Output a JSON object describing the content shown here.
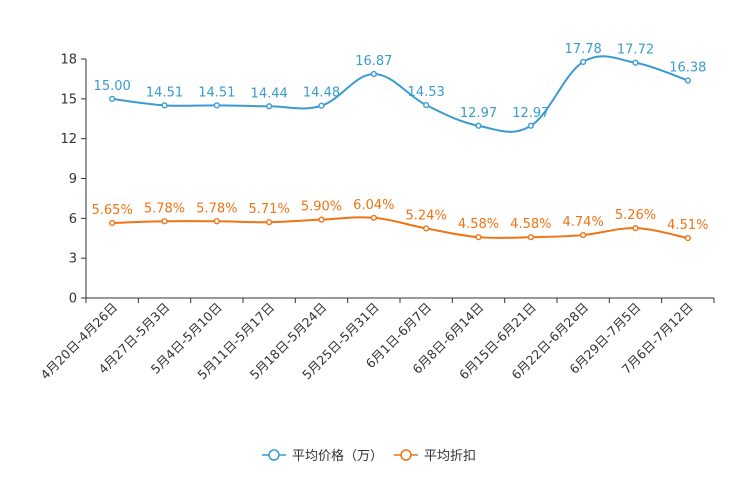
{
  "chart_data": {
    "type": "line",
    "title": "",
    "xlabel": "",
    "ylabel": "",
    "ylim": [
      0,
      18
    ],
    "yticks": [
      "0",
      "3",
      "6",
      "9",
      "12",
      "15",
      "18"
    ],
    "grid": false,
    "legend_position": "bottom-center",
    "categories": [
      "4月20日-4月26日",
      "4月27日-5月3日",
      "5月4日-5月10日",
      "5月11日-5月17日",
      "5月18日-5月24日",
      "5月25日-5月31日",
      "6月1日-6月7日",
      "6月8日-6月14日",
      "6月15日-6月21日",
      "6月22日-6月28日",
      "6月29日-7月5日",
      "7月6日-7月12日"
    ],
    "series": [
      {
        "name": "平均价格（万）",
        "color": "#3a9bd0",
        "values": [
          15.0,
          14.51,
          14.51,
          14.44,
          14.48,
          16.87,
          14.53,
          12.97,
          12.97,
          17.78,
          17.72,
          16.38
        ],
        "labels": [
          "15.00",
          "14.51",
          "14.51",
          "14.44",
          "14.48",
          "16.87",
          "14.53",
          "12.97",
          "12.97",
          "17.78",
          "17.72",
          "16.38"
        ]
      },
      {
        "name": "平均折扣",
        "color": "#f07314",
        "values": [
          5.65,
          5.78,
          5.78,
          5.71,
          5.9,
          6.04,
          5.24,
          4.58,
          4.58,
          4.74,
          5.26,
          4.51
        ],
        "labels": [
          "5.65%",
          "5.78%",
          "5.78%",
          "5.71%",
          "5.90%",
          "6.04%",
          "5.24%",
          "4.58%",
          "4.58%",
          "4.74%",
          "5.26%",
          "4.51%"
        ]
      }
    ]
  }
}
